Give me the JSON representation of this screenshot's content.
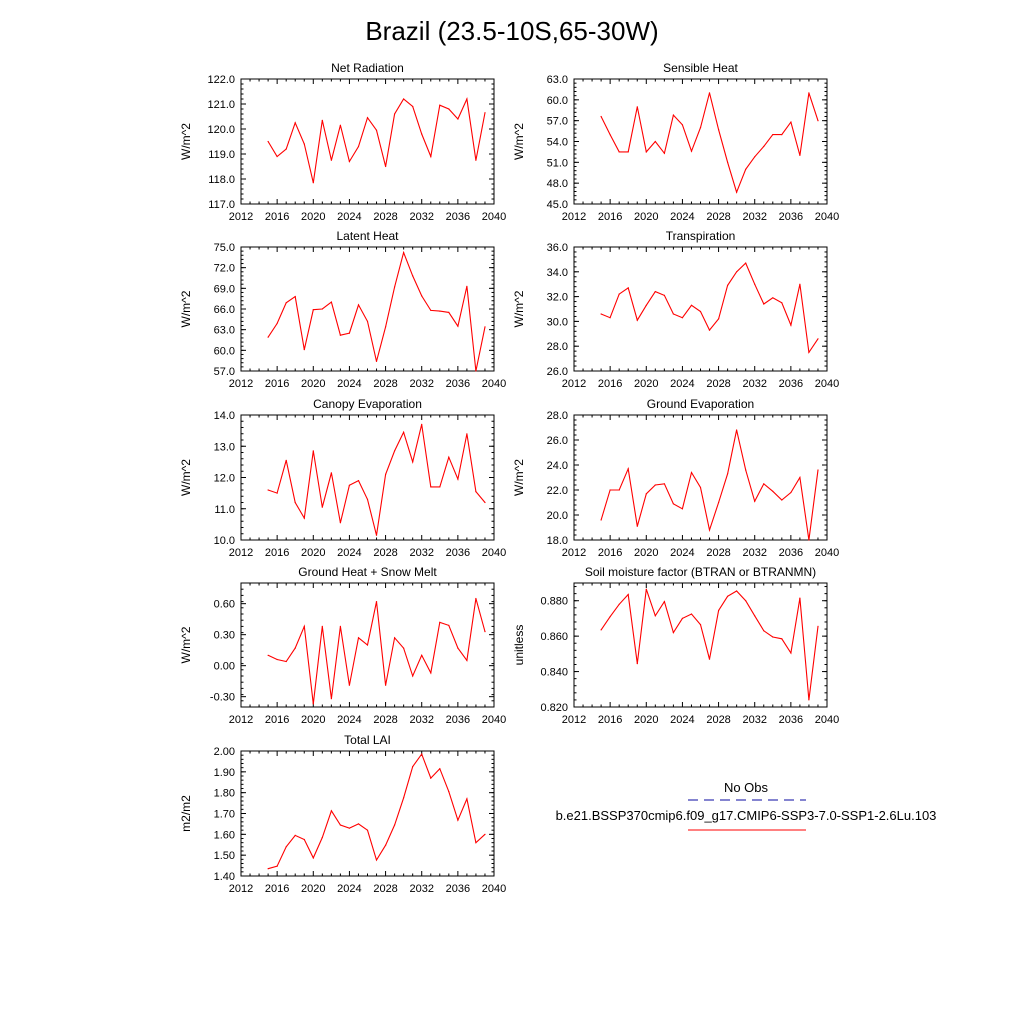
{
  "figure_title": "Brazil (23.5-10S,65-30W)",
  "x_ticks": [
    2012,
    2016,
    2020,
    2024,
    2028,
    2032,
    2036,
    2040
  ],
  "years": [
    2015,
    2016,
    2017,
    2018,
    2019,
    2020,
    2021,
    2022,
    2023,
    2024,
    2025,
    2026,
    2027,
    2028,
    2029,
    2030,
    2031,
    2032,
    2033,
    2034,
    2035,
    2036,
    2037,
    2038,
    2039
  ],
  "colors": {
    "model_line": "#ff0000",
    "obs_line": "#3b3bb3",
    "axis": "#000000"
  },
  "legend": {
    "obs_label": "No Obs",
    "model_label": "b.e21.BSSP370cmip6.f09_g17.CMIP6-SSP3-7.0-SSP1-2.6Lu.103"
  },
  "chart_data": [
    {
      "id": "net-radiation",
      "type": "line",
      "title": "Net Radiation",
      "ylabel": "W/m^2",
      "ylim": [
        117.0,
        122.0
      ],
      "yticks": [
        117.0,
        118.0,
        119.0,
        120.0,
        121.0,
        122.0
      ],
      "ytick_labels": [
        "117.0",
        "118.0",
        "119.0",
        "120.0",
        "121.0",
        "122.0"
      ],
      "xlim": [
        2012,
        2040
      ],
      "series": [
        {
          "x": [
            2015,
            2016,
            2017,
            2018,
            2019,
            2020,
            2021,
            2022,
            2023,
            2024,
            2025,
            2026,
            2027,
            2028,
            2029,
            2030,
            2031,
            2032,
            2033,
            2034,
            2035,
            2036,
            2037,
            2038,
            2039
          ],
          "values": [
            119.5,
            118.9,
            119.2,
            120.25,
            119.4,
            117.85,
            120.35,
            118.75,
            120.15,
            118.7,
            119.3,
            120.45,
            119.95,
            118.5,
            120.6,
            121.2,
            120.9,
            119.8,
            118.9,
            120.95,
            120.8,
            120.4,
            121.2,
            118.75,
            120.65
          ]
        }
      ]
    },
    {
      "id": "sensible-heat",
      "type": "line",
      "title": "Sensible Heat",
      "ylabel": "W/m^2",
      "ylim": [
        45.0,
        63.0
      ],
      "yticks": [
        45.0,
        48.0,
        51.0,
        54.0,
        57.0,
        60.0,
        63.0
      ],
      "ytick_labels": [
        "45.0",
        "48.0",
        "51.0",
        "54.0",
        "57.0",
        "60.0",
        "63.0"
      ],
      "xlim": [
        2012,
        2040
      ],
      "series": [
        {
          "x": [
            2015,
            2016,
            2017,
            2018,
            2019,
            2020,
            2021,
            2022,
            2023,
            2024,
            2025,
            2026,
            2027,
            2028,
            2029,
            2030,
            2031,
            2032,
            2033,
            2034,
            2035,
            2036,
            2037,
            2038,
            2039
          ],
          "values": [
            57.6,
            55.0,
            52.5,
            52.5,
            59.0,
            52.5,
            54.0,
            52.3,
            57.8,
            56.4,
            52.6,
            56.0,
            61.0,
            55.7,
            51.0,
            46.7,
            50.0,
            51.8,
            53.3,
            55.0,
            55.0,
            56.8,
            52.0,
            61.0,
            57.0
          ]
        }
      ]
    },
    {
      "id": "latent-heat",
      "type": "line",
      "title": "Latent Heat",
      "ylabel": "W/m^2",
      "ylim": [
        57.0,
        75.0
      ],
      "yticks": [
        57.0,
        60.0,
        63.0,
        66.0,
        69.0,
        72.0,
        75.0
      ],
      "ytick_labels": [
        "57.0",
        "60.0",
        "63.0",
        "66.0",
        "69.0",
        "72.0",
        "75.0"
      ],
      "xlim": [
        2012,
        2040
      ],
      "series": [
        {
          "x": [
            2015,
            2016,
            2017,
            2018,
            2019,
            2020,
            2021,
            2022,
            2023,
            2024,
            2025,
            2026,
            2027,
            2028,
            2029,
            2030,
            2031,
            2032,
            2033,
            2034,
            2035,
            2036,
            2037,
            2038,
            2039
          ],
          "values": [
            61.9,
            63.9,
            66.9,
            67.8,
            60.1,
            65.9,
            66.0,
            67.0,
            62.2,
            62.5,
            66.6,
            64.2,
            58.4,
            63.4,
            69.2,
            74.2,
            70.8,
            67.9,
            65.8,
            65.7,
            65.5,
            63.5,
            69.3,
            57.0,
            63.4
          ]
        }
      ]
    },
    {
      "id": "transpiration",
      "type": "line",
      "title": "Transpiration",
      "ylabel": "W/m^2",
      "ylim": [
        26.0,
        36.0
      ],
      "yticks": [
        26.0,
        28.0,
        30.0,
        32.0,
        34.0,
        36.0
      ],
      "ytick_labels": [
        "26.0",
        "28.0",
        "30.0",
        "32.0",
        "34.0",
        "36.0"
      ],
      "xlim": [
        2012,
        2040
      ],
      "series": [
        {
          "x": [
            2015,
            2016,
            2017,
            2018,
            2019,
            2020,
            2021,
            2022,
            2023,
            2024,
            2025,
            2026,
            2027,
            2028,
            2029,
            2030,
            2031,
            2032,
            2033,
            2034,
            2035,
            2036,
            2037,
            2038,
            2039
          ],
          "values": [
            30.6,
            30.3,
            32.2,
            32.7,
            30.1,
            31.3,
            32.4,
            32.1,
            30.6,
            30.3,
            31.3,
            30.8,
            29.3,
            30.2,
            32.9,
            34.0,
            34.7,
            33.0,
            31.4,
            31.9,
            31.5,
            29.7,
            33.0,
            27.5,
            28.6
          ]
        }
      ]
    },
    {
      "id": "canopy-evaporation",
      "type": "line",
      "title": "Canopy Evaporation",
      "ylabel": "W/m^2",
      "ylim": [
        10.0,
        14.0
      ],
      "yticks": [
        10.0,
        11.0,
        12.0,
        13.0,
        14.0
      ],
      "ytick_labels": [
        "10.0",
        "11.0",
        "12.0",
        "13.0",
        "14.0"
      ],
      "xlim": [
        2012,
        2040
      ],
      "series": [
        {
          "x": [
            2015,
            2016,
            2017,
            2018,
            2019,
            2020,
            2021,
            2022,
            2023,
            2024,
            2025,
            2026,
            2027,
            2028,
            2029,
            2030,
            2031,
            2032,
            2033,
            2034,
            2035,
            2036,
            2037,
            2038,
            2039
          ],
          "values": [
            11.6,
            11.5,
            12.55,
            11.2,
            10.7,
            12.85,
            11.05,
            12.15,
            10.55,
            11.75,
            11.9,
            11.3,
            10.15,
            12.1,
            12.85,
            13.45,
            12.5,
            13.7,
            11.7,
            11.7,
            12.65,
            11.95,
            13.4,
            11.55,
            11.2
          ]
        }
      ]
    },
    {
      "id": "ground-evaporation",
      "type": "line",
      "title": "Ground Evaporation",
      "ylabel": "W/m^2",
      "ylim": [
        18.0,
        28.0
      ],
      "yticks": [
        18.0,
        20.0,
        22.0,
        24.0,
        26.0,
        28.0
      ],
      "ytick_labels": [
        "18.0",
        "20.0",
        "22.0",
        "24.0",
        "26.0",
        "28.0"
      ],
      "xlim": [
        2012,
        2040
      ],
      "series": [
        {
          "x": [
            2015,
            2016,
            2017,
            2018,
            2019,
            2020,
            2021,
            2022,
            2023,
            2024,
            2025,
            2026,
            2027,
            2028,
            2029,
            2030,
            2031,
            2032,
            2033,
            2034,
            2035,
            2036,
            2037,
            2038,
            2039
          ],
          "values": [
            19.6,
            22.0,
            22.0,
            23.7,
            19.1,
            21.7,
            22.4,
            22.5,
            20.9,
            20.5,
            23.4,
            22.2,
            18.8,
            21.0,
            23.3,
            26.8,
            23.6,
            21.1,
            22.5,
            21.9,
            21.2,
            21.8,
            23.0,
            18.0,
            23.6
          ]
        }
      ]
    },
    {
      "id": "ground-heat-snow-melt",
      "type": "line",
      "title": "Ground Heat + Snow Melt",
      "ylabel": "W/m^2",
      "ylim": [
        -0.4,
        0.8
      ],
      "yticks": [
        -0.3,
        0.0,
        0.3,
        0.6
      ],
      "ytick_labels": [
        "-0.30",
        "0.00",
        "0.30",
        "0.60"
      ],
      "xlim": [
        2012,
        2040
      ],
      "series": [
        {
          "x": [
            2015,
            2016,
            2017,
            2018,
            2019,
            2020,
            2021,
            2022,
            2023,
            2024,
            2025,
            2026,
            2027,
            2028,
            2029,
            2030,
            2031,
            2032,
            2033,
            2034,
            2035,
            2036,
            2037,
            2038,
            2039
          ],
          "values": [
            0.1,
            0.06,
            0.04,
            0.17,
            0.38,
            -0.37,
            0.38,
            -0.32,
            0.38,
            -0.19,
            0.27,
            0.2,
            0.62,
            -0.19,
            0.27,
            0.17,
            -0.1,
            0.1,
            -0.07,
            0.42,
            0.39,
            0.17,
            0.05,
            0.65,
            0.33
          ]
        }
      ]
    },
    {
      "id": "soil-moisture-factor",
      "type": "line",
      "title": "Soil moisture factor (BTRAN or BTRANMN)",
      "ylabel": "unitless",
      "ylim": [
        0.82,
        0.89
      ],
      "yticks": [
        0.82,
        0.84,
        0.86,
        0.88
      ],
      "ytick_labels": [
        "0.820",
        "0.840",
        "0.860",
        "0.880"
      ],
      "xlim": [
        2012,
        2040
      ],
      "series": [
        {
          "x": [
            2015,
            2016,
            2017,
            2018,
            2019,
            2020,
            2021,
            2022,
            2023,
            2024,
            2025,
            2026,
            2027,
            2028,
            2029,
            2030,
            2031,
            2032,
            2033,
            2034,
            2035,
            2036,
            2037,
            2038,
            2039
          ],
          "values": [
            0.8635,
            0.871,
            0.878,
            0.8835,
            0.8445,
            0.8865,
            0.8715,
            0.8795,
            0.862,
            0.87,
            0.8725,
            0.8665,
            0.847,
            0.8745,
            0.8825,
            0.8855,
            0.88,
            0.8715,
            0.863,
            0.8595,
            0.8585,
            0.8505,
            0.8815,
            0.824,
            0.8655
          ]
        }
      ]
    },
    {
      "id": "total-lai",
      "type": "line",
      "title": "Total LAI",
      "ylabel": "m2/m2",
      "ylim": [
        1.4,
        2.0
      ],
      "yticks": [
        1.4,
        1.5,
        1.6,
        1.7,
        1.8,
        1.9,
        2.0
      ],
      "ytick_labels": [
        "1.40",
        "1.50",
        "1.60",
        "1.70",
        "1.80",
        "1.90",
        "2.00"
      ],
      "xlim": [
        2012,
        2040
      ],
      "series": [
        {
          "x": [
            2015,
            2016,
            2017,
            2018,
            2019,
            2020,
            2021,
            2022,
            2023,
            2024,
            2025,
            2026,
            2027,
            2028,
            2029,
            2030,
            2031,
            2032,
            2033,
            2034,
            2035,
            2036,
            2037,
            2038,
            2039
          ],
          "values": [
            1.435,
            1.447,
            1.54,
            1.595,
            1.575,
            1.487,
            1.585,
            1.713,
            1.645,
            1.63,
            1.65,
            1.62,
            1.477,
            1.548,
            1.645,
            1.775,
            1.925,
            1.985,
            1.87,
            1.915,
            1.805,
            1.668,
            1.77,
            1.56,
            1.6
          ]
        }
      ]
    }
  ]
}
